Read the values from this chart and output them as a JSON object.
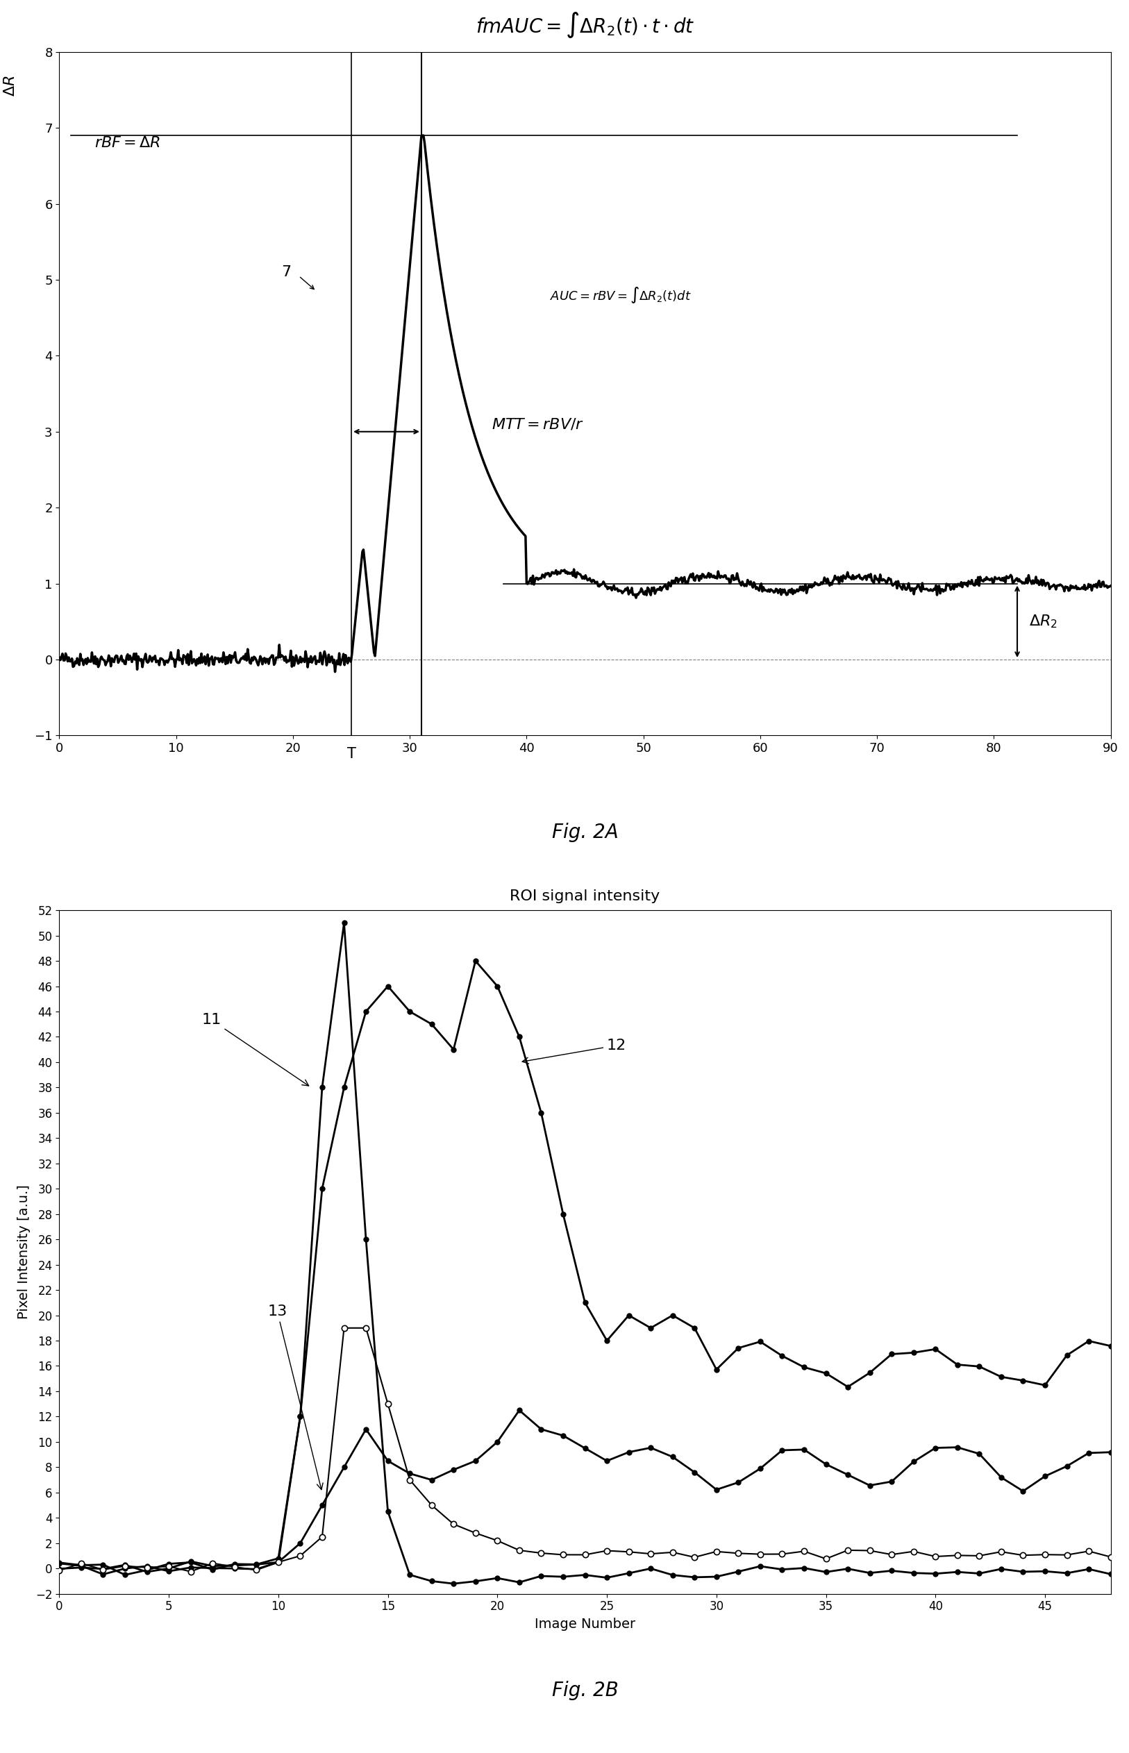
{
  "fig2a": {
    "title": "$fmAUC = \\int\\Delta R_2(t)\\cdot t\\cdot dt$",
    "ylabel": "$\\Delta R$",
    "xlim": [
      0,
      90
    ],
    "ylim": [
      -1,
      8
    ],
    "yticks": [
      -1,
      0,
      1,
      2,
      3,
      4,
      5,
      6,
      7,
      8
    ],
    "xticks": [
      0,
      10,
      20,
      30,
      40,
      50,
      60,
      70,
      80,
      90
    ],
    "annotation_7": [
      19,
      5.1
    ],
    "annotation_rBF": [
      3,
      6.8
    ],
    "annotation_AUC": [
      42,
      4.8
    ],
    "annotation_MTT": [
      37,
      3.1
    ],
    "annotation_DR2": [
      83,
      0.5
    ],
    "vline_T": 25,
    "vline_peak": 31,
    "hline_rBF_y": 6.9,
    "hline_rBF_x1": 1,
    "hline_rBF_x2": 82,
    "hline_DR2_y": 1.0,
    "hline_DR2_x1": 38,
    "hline_DR2_x2": 82,
    "fig_label": "Fig. 2A",
    "background": "#ffffff",
    "curve_color": "#000000"
  },
  "fig2b": {
    "title": "ROI signal intensity",
    "ylabel": "Pixel Intensity [a.u.]",
    "xlabel": "Image Number",
    "xlim": [
      0,
      48
    ],
    "ylim": [
      -2,
      52
    ],
    "yticks": [
      -2,
      0,
      2,
      4,
      6,
      8,
      10,
      12,
      14,
      16,
      18,
      20,
      22,
      24,
      26,
      28,
      30,
      32,
      34,
      36,
      38,
      40,
      42,
      44,
      46,
      48,
      50,
      52
    ],
    "xticks": [
      0,
      5,
      10,
      15,
      20,
      25,
      30,
      35,
      40,
      45
    ],
    "annotation_11": [
      6.5,
      43
    ],
    "annotation_12": [
      25,
      41
    ],
    "annotation_13": [
      9.5,
      20
    ],
    "fig_label": "Fig. 2B",
    "background": "#ffffff"
  }
}
